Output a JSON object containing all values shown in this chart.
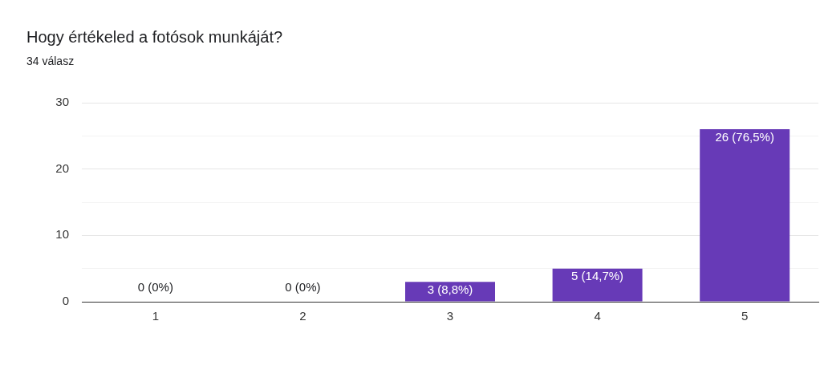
{
  "chart_data": {
    "type": "bar",
    "title": "Hogy értékeled a fotósok munkáját?",
    "subtitle": "34 válasz",
    "categories": [
      "1",
      "2",
      "3",
      "4",
      "5"
    ],
    "values": [
      0,
      0,
      3,
      5,
      26
    ],
    "color": "#673ab7",
    "value_labels": [
      "0 (0%)",
      "0 (0%)",
      "3 (8,8%)",
      "5 (14,7%)",
      "26 (76,5%)"
    ],
    "ylim": [
      0,
      30
    ],
    "yticks": [
      0,
      {
        "value": 5,
        "label": null
      },
      10,
      {
        "value": 15,
        "label": null
      },
      20,
      {
        "value": 25,
        "label": null
      },
      30
    ],
    "grid": true
  }
}
